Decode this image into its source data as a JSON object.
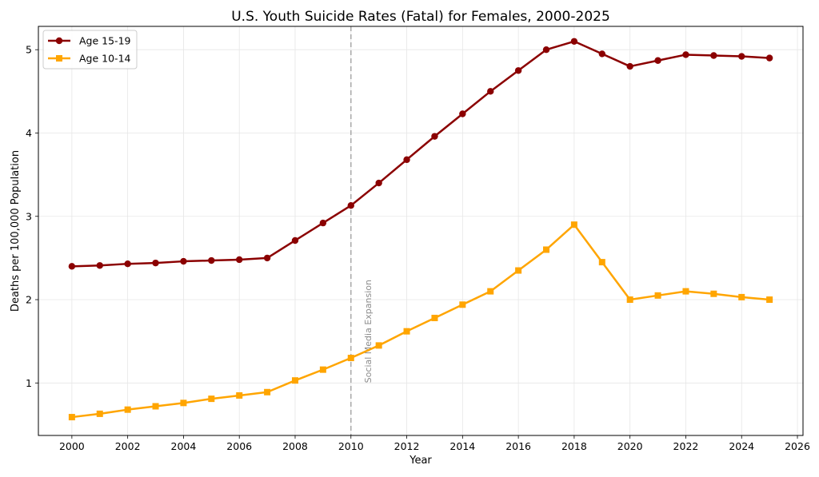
{
  "chart_data": {
    "type": "line",
    "title": "U.S. Youth Suicide Rates (Fatal) for Females, 2000-2025",
    "xlabel": "Year",
    "ylabel": "Deaths per 100,000 Population",
    "xlim": [
      1998.8,
      2026.2
    ],
    "ylim": [
      0.37,
      5.28
    ],
    "x_ticks": [
      2000,
      2002,
      2004,
      2006,
      2008,
      2010,
      2012,
      2014,
      2016,
      2018,
      2020,
      2022,
      2024,
      2026
    ],
    "y_ticks": [
      1,
      2,
      3,
      4,
      5
    ],
    "grid": true,
    "legend_position": "top-left",
    "x": [
      2000,
      2001,
      2002,
      2003,
      2004,
      2005,
      2006,
      2007,
      2008,
      2009,
      2010,
      2011,
      2012,
      2013,
      2014,
      2015,
      2016,
      2017,
      2018,
      2019,
      2020,
      2021,
      2022,
      2023,
      2024,
      2025
    ],
    "series": [
      {
        "name": "Age 15-19",
        "color": "#8b0000",
        "marker": "circle",
        "values": [
          2.4,
          2.41,
          2.43,
          2.44,
          2.46,
          2.47,
          2.48,
          2.5,
          2.71,
          2.92,
          3.13,
          3.4,
          3.68,
          3.96,
          4.23,
          4.5,
          4.75,
          5.0,
          5.1,
          4.95,
          4.8,
          4.87,
          4.94,
          4.93,
          4.92,
          4.9
        ]
      },
      {
        "name": "Age 10-14",
        "color": "#ffa500",
        "marker": "square",
        "values": [
          0.59,
          0.63,
          0.68,
          0.72,
          0.76,
          0.81,
          0.85,
          0.89,
          1.03,
          1.16,
          1.3,
          1.45,
          1.62,
          1.78,
          1.94,
          2.1,
          2.35,
          2.6,
          2.9,
          2.45,
          2.0,
          2.05,
          2.1,
          2.07,
          2.03,
          2.0
        ]
      }
    ],
    "annotations": [
      {
        "x": 2010,
        "text": "Social Media Expansion",
        "style": "dashed-vertical-line",
        "color": "#a9a9a9"
      }
    ]
  }
}
